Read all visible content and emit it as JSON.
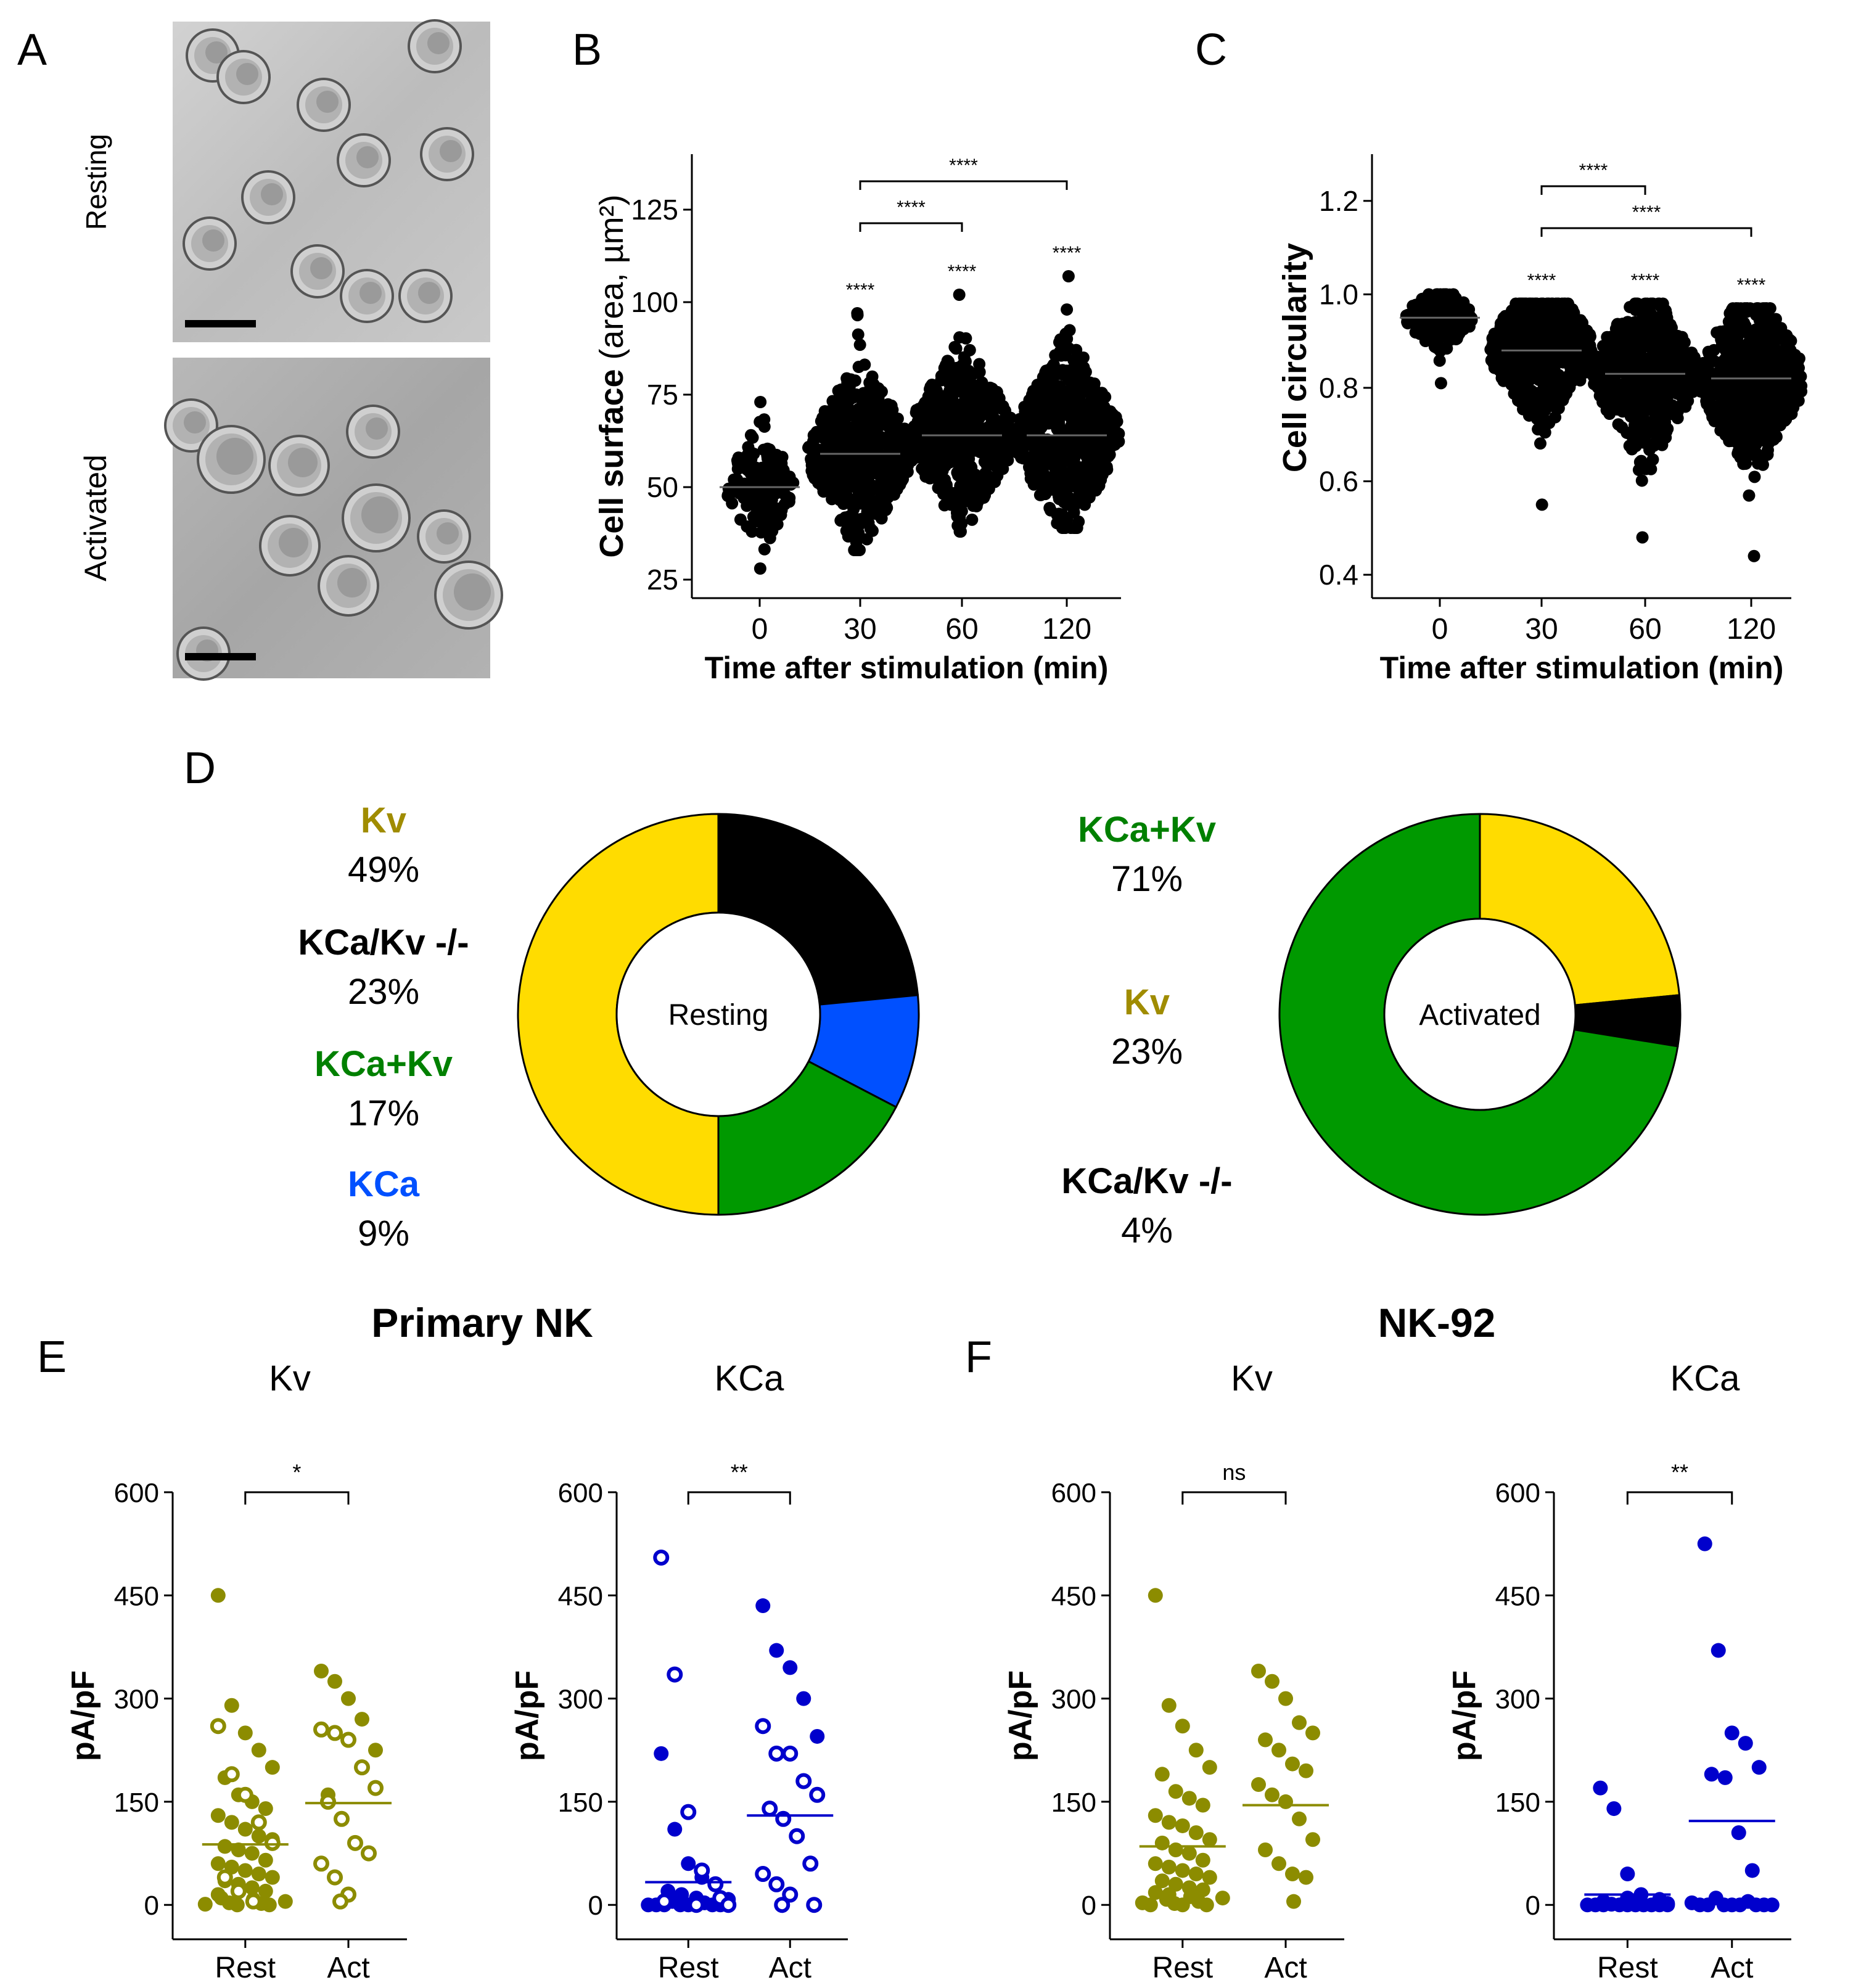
{
  "panel_letters": [
    "A",
    "B",
    "C",
    "D",
    "E",
    "F"
  ],
  "micrographs": {
    "labels": [
      "Resting",
      "Activated"
    ]
  },
  "chart_data": [
    {
      "id": "B",
      "type": "scatter",
      "ylabel_main": "Cell surface",
      "ylabel_unit": "(area, µm²)",
      "xlabel": "Time after stimulation (min)",
      "categories": [
        "0",
        "30",
        "60",
        "120"
      ],
      "ylim": [
        20,
        140
      ],
      "yticks": [
        25,
        50,
        75,
        100,
        125
      ],
      "means": [
        50,
        59,
        64,
        64
      ],
      "ranges": [
        [
          28,
          73
        ],
        [
          33,
          97
        ],
        [
          38,
          102
        ],
        [
          39,
          107
        ]
      ],
      "star_labels": [
        "****",
        "****",
        "****"
      ],
      "brackets": [
        {
          "from": 1,
          "to": 2,
          "label": "****"
        },
        {
          "from": 1,
          "to": 3,
          "label": "****"
        }
      ]
    },
    {
      "id": "C",
      "type": "scatter",
      "ylabel": "Cell circularity",
      "xlabel": "Time after stimulation (min)",
      "categories": [
        "0",
        "30",
        "60",
        "120"
      ],
      "ylim": [
        0.35,
        1.3
      ],
      "yticks": [
        "0.4",
        "0.6",
        "0.8",
        "1.0",
        "1.2"
      ],
      "means": [
        0.95,
        0.88,
        0.83,
        0.82
      ],
      "ranges": [
        [
          0.81,
          1.0
        ],
        [
          0.55,
          0.98
        ],
        [
          0.48,
          0.98
        ],
        [
          0.44,
          0.97
        ]
      ],
      "star_labels": [
        "****",
        "****",
        "****"
      ],
      "brackets": [
        {
          "from": 1,
          "to": 2,
          "label": "****"
        },
        {
          "from": 1,
          "to": 3,
          "label": "****"
        }
      ]
    },
    {
      "id": "D-resting",
      "type": "pie",
      "center_label": "Resting",
      "slices": [
        {
          "name": "KCa/Kv -/-",
          "value": 23,
          "label": "23%",
          "color": "#000000"
        },
        {
          "name": "KCa",
          "value": 9,
          "label": "9%",
          "color": "#0050ff"
        },
        {
          "name": "KCa+Kv",
          "value": 17,
          "label": "17%",
          "color": "#009900"
        },
        {
          "name": "Kv",
          "value": 49,
          "label": "49%",
          "color": "#ffdc00"
        }
      ],
      "legend_order": [
        "Kv",
        "KCa/Kv -/-",
        "KCa+Kv",
        "KCa"
      ],
      "legend_colors": [
        "#a08c00",
        "#000000",
        "#008000",
        "#0050ff"
      ]
    },
    {
      "id": "D-activated",
      "type": "pie",
      "center_label": "Activated",
      "slices": [
        {
          "name": "Kv",
          "value": 23,
          "label": "23%",
          "color": "#ffdc00"
        },
        {
          "name": "KCa/Kv -/-",
          "value": 4,
          "label": "4%",
          "color": "#000000"
        },
        {
          "name": "KCa+Kv",
          "value": 71,
          "label": "71%",
          "color": "#009900"
        }
      ],
      "legend_order": [
        "KCa+Kv",
        "Kv",
        "KCa/Kv -/-"
      ],
      "legend_colors": [
        "#008000",
        "#a08c00",
        "#000000"
      ]
    },
    {
      "id": "E-Kv",
      "type": "scatter",
      "group_title": "Primary NK",
      "title": "Kv",
      "ylabel": "pA/pF",
      "categories": [
        "Rest",
        "Act"
      ],
      "ylim": [
        -50,
        600
      ],
      "yticks": [
        0,
        150,
        300,
        450,
        600
      ],
      "color": "#8c8c00",
      "significance": "*",
      "means": [
        88,
        148
      ],
      "rest_filled": [
        450,
        290,
        250,
        225,
        200,
        185,
        160,
        150,
        140,
        130,
        120,
        110,
        100,
        95,
        85,
        80,
        75,
        65,
        60,
        55,
        50,
        45,
        40,
        35,
        30,
        25,
        20,
        15,
        10,
        8,
        5,
        3,
        2,
        1,
        0,
        0
      ],
      "rest_open": [
        260,
        190,
        160,
        120,
        90,
        40,
        20,
        5
      ],
      "act_filled": [
        340,
        325,
        300,
        270,
        225,
        160
      ],
      "act_open": [
        255,
        250,
        240,
        200,
        170,
        150,
        125,
        90,
        75,
        60,
        40,
        15,
        5
      ]
    },
    {
      "id": "E-KCa",
      "type": "scatter",
      "title": "KCa",
      "ylabel": "pA/pF",
      "categories": [
        "Rest",
        "Act"
      ],
      "ylim": [
        -50,
        600
      ],
      "yticks": [
        0,
        150,
        300,
        450,
        600
      ],
      "color": "#0000cc",
      "significance": "**",
      "means": [
        33,
        130
      ],
      "rest_filled": [
        220,
        110,
        60,
        40,
        30,
        20,
        15,
        10,
        8,
        5,
        3,
        0,
        0,
        0,
        0,
        0,
        0,
        0
      ],
      "rest_open": [
        505,
        335,
        135,
        50,
        30,
        10,
        5,
        0,
        0
      ],
      "act_filled": [
        435,
        370,
        345,
        300,
        245
      ],
      "act_open": [
        260,
        220,
        220,
        180,
        160,
        140,
        125,
        100,
        60,
        45,
        30,
        15,
        0,
        0
      ]
    },
    {
      "id": "F-Kv",
      "type": "scatter",
      "group_title": "NK-92",
      "title": "Kv",
      "ylabel": "pA/pF",
      "categories": [
        "Rest",
        "Act"
      ],
      "ylim": [
        -50,
        600
      ],
      "yticks": [
        0,
        150,
        300,
        450,
        600
      ],
      "color": "#8c8c00",
      "significance": "ns",
      "means": [
        85,
        145
      ],
      "rest_filled": [
        450,
        290,
        260,
        225,
        200,
        190,
        165,
        155,
        145,
        130,
        120,
        115,
        105,
        95,
        90,
        80,
        75,
        65,
        60,
        55,
        50,
        45,
        40,
        35,
        30,
        25,
        22,
        18,
        15,
        12,
        10,
        8,
        5,
        3,
        2,
        0,
        0,
        0
      ],
      "act_filled": [
        340,
        325,
        300,
        265,
        250,
        240,
        225,
        205,
        195,
        175,
        160,
        150,
        125,
        95,
        80,
        60,
        45,
        40,
        5
      ]
    },
    {
      "id": "F-KCa",
      "type": "scatter",
      "title": "KCa",
      "ylabel": "pA/pF",
      "categories": [
        "Rest",
        "Act"
      ],
      "ylim": [
        -50,
        600
      ],
      "yticks": [
        0,
        150,
        300,
        450,
        600
      ],
      "color": "#0000cc",
      "significance": "**",
      "means": [
        15,
        122
      ],
      "rest_filled": [
        170,
        140,
        45,
        15,
        10,
        8,
        5,
        3,
        2,
        1,
        0,
        0,
        0,
        0,
        0,
        0,
        0,
        0,
        0,
        0
      ],
      "act_filled": [
        525,
        370,
        250,
        235,
        200,
        190,
        185,
        105,
        50,
        10,
        5,
        3,
        0,
        0,
        0,
        0,
        0,
        0,
        0,
        0
      ]
    }
  ]
}
